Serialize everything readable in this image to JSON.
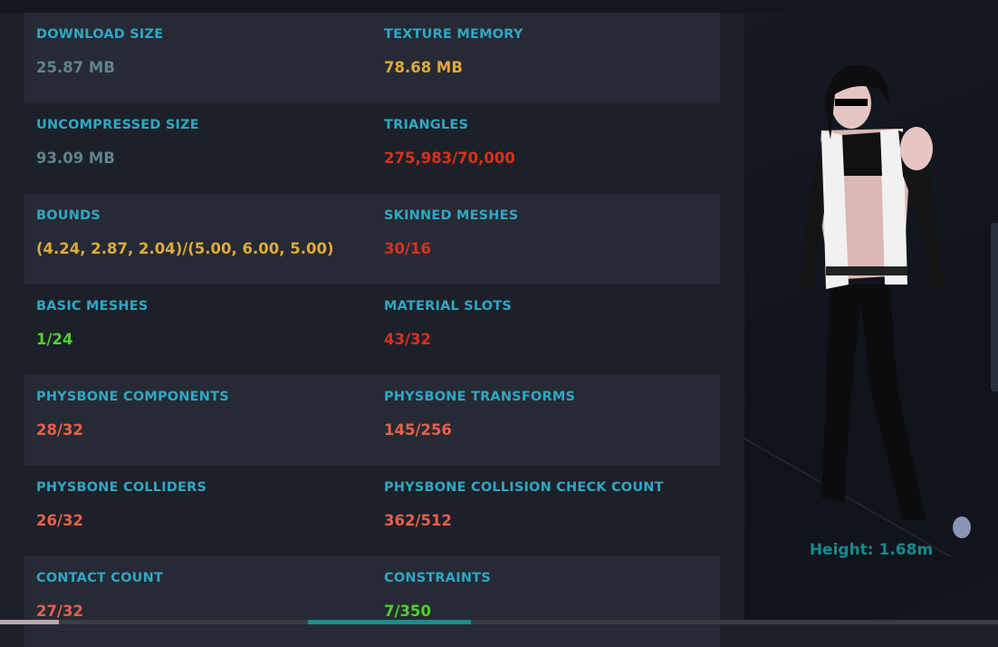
{
  "stats": [
    {
      "label": "DOWNLOAD SIZE",
      "value": "25.87 MB",
      "color": "#5f848c"
    },
    {
      "label": "TEXTURE MEMORY",
      "value": "78.68 MB",
      "color": "#e0a93a"
    },
    {
      "label": "UNCOMPRESSED SIZE",
      "value": "93.09 MB",
      "color": "#5f848c"
    },
    {
      "label": "TRIANGLES",
      "value": "275,983/70,000",
      "color": "#d8301c"
    },
    {
      "label": "BOUNDS",
      "value": "(4.24, 2.87, 2.04)/(5.00, 6.00, 5.00)",
      "color": "#e0a93a"
    },
    {
      "label": "SKINNED MESHES",
      "value": "30/16",
      "color": "#d8301c"
    },
    {
      "label": "BASIC MESHES",
      "value": "1/24",
      "color": "#4fd12b"
    },
    {
      "label": "MATERIAL SLOTS",
      "value": "43/32",
      "color": "#d8301c"
    },
    {
      "label": "PHYSBONE COMPONENTS",
      "value": "28/32",
      "color": "#e8604a"
    },
    {
      "label": "PHYSBONE TRANSFORMS",
      "value": "145/256",
      "color": "#e8604a"
    },
    {
      "label": "PHYSBONE COLLIDERS",
      "value": "26/32",
      "color": "#e8604a"
    },
    {
      "label": "PHYSBONE COLLISION CHECK COUNT",
      "value": "362/512",
      "color": "#e8604a"
    },
    {
      "label": "CONTACT COUNT",
      "value": "27/32",
      "color": "#e8604a"
    },
    {
      "label": "CONSTRAINTS",
      "value": "7/350",
      "color": "#4fd12b"
    }
  ],
  "preview": {
    "height_text": "Height: 1.68m"
  }
}
